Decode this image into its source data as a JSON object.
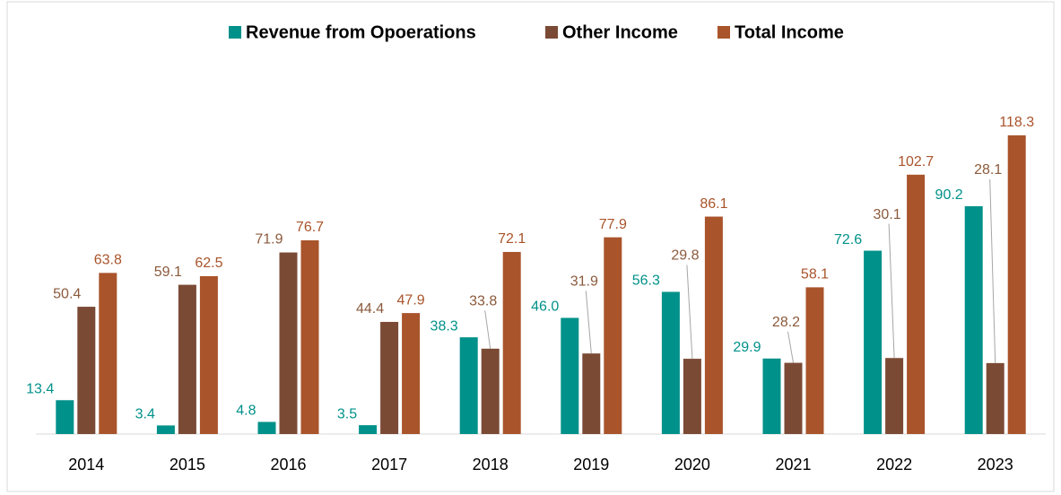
{
  "chart_data": {
    "type": "bar",
    "categories": [
      "2014",
      "2015",
      "2016",
      "2017",
      "2018",
      "2019",
      "2020",
      "2021",
      "2022",
      "2023"
    ],
    "series": [
      {
        "name": "Revenue from Opoerations",
        "color": "#00918a",
        "values": [
          13.4,
          3.4,
          4.8,
          3.5,
          38.3,
          46,
          56.3,
          29.9,
          72.6,
          90.2
        ],
        "value_labels": [
          "13.4",
          "3.4",
          "4.8",
          "3.5",
          "38.3",
          "46.0",
          "56.3",
          "29.9",
          "72.6",
          "90.2"
        ]
      },
      {
        "name": "Other Income",
        "color": "#7b4a35",
        "values": [
          50.4,
          59.1,
          71.9,
          44.4,
          33.8,
          31.9,
          29.8,
          28.2,
          30.1,
          28.1
        ],
        "value_labels": [
          "50.4",
          "59.1",
          "71.9",
          "44.4",
          "33.8",
          "31.9",
          "29.8",
          "28.2",
          "30.1",
          "28.1"
        ]
      },
      {
        "name": "Total Income",
        "color": "#a9542b",
        "values": [
          63.8,
          62.5,
          76.7,
          47.9,
          72.1,
          77.9,
          86.1,
          58.1,
          102.7,
          118.3
        ],
        "value_labels": [
          "63.8",
          "62.5",
          "76.7",
          "47.9",
          "72.1",
          "77.9",
          "86.1",
          "58.1",
          "102.7",
          "118.3"
        ]
      }
    ],
    "ylim": [
      0,
      125
    ],
    "legend": "top"
  }
}
